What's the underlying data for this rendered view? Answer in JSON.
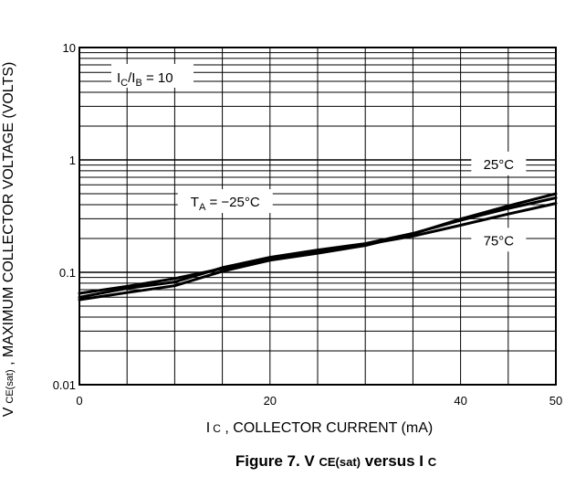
{
  "chart_data": {
    "type": "line",
    "title": "",
    "xlabel": "I C , COLLECTOR CURRENT (mA)",
    "xlabel_parts": {
      "main": "I",
      "sub": "C",
      "rest": " , COLLECTOR CURRENT (mA)"
    },
    "ylabel": "V CE(sat) , MAXIMUM COLLECTOR VOLTAGE (VOLTS)",
    "ylabel_parts": {
      "main": "V",
      "sub": "CE(sat)",
      "rest": " , MAXIMUM COLLECTOR VOLTAGE (VOLTS)"
    },
    "caption": "Figure 7. V CE(sat) versus I C",
    "caption_parts": {
      "prefix": "Figure 7. V ",
      "sub1": "CE(sat)",
      "mid": " versus I ",
      "sub2": "C"
    },
    "x_scale": "linear",
    "y_scale": "log",
    "xlim": [
      0,
      50
    ],
    "ylim": [
      0.01,
      10
    ],
    "x_ticks": [
      0,
      20,
      40,
      50
    ],
    "x_tick_labels": [
      "0",
      "20",
      "40",
      "50"
    ],
    "y_ticks": [
      0.01,
      0.1,
      1,
      10
    ],
    "y_tick_labels": [
      "0.01",
      "0.1",
      "1",
      "10"
    ],
    "grid": true,
    "x_grid": [
      0,
      5,
      10,
      15,
      20,
      25,
      30,
      35,
      40,
      45,
      50
    ],
    "condition": {
      "main": "I",
      "sub1": "C",
      "slash": "/I",
      "sub2": "B",
      "rest": " = 10"
    },
    "series": [
      {
        "name": "TA = -25°C",
        "label_parts": {
          "main": "T",
          "sub": "A",
          "rest": " = −25°C"
        },
        "x": [
          0,
          5,
          10,
          15,
          20,
          25,
          30,
          35,
          40,
          45,
          50
        ],
        "values": [
          0.065,
          0.075,
          0.088,
          0.108,
          0.13,
          0.152,
          0.177,
          0.21,
          0.262,
          0.33,
          0.41
        ]
      },
      {
        "name": "25°C",
        "label_parts": {
          "main": "25°C"
        },
        "x": [
          0,
          5,
          10,
          15,
          20,
          25,
          30,
          35,
          40,
          45,
          50
        ],
        "values": [
          0.06,
          0.072,
          0.082,
          0.11,
          0.136,
          0.158,
          0.18,
          0.222,
          0.29,
          0.37,
          0.46
        ]
      },
      {
        "name": "75°C",
        "label_parts": {
          "main": "75°C"
        },
        "x": [
          0,
          5,
          10,
          15,
          20,
          25,
          30,
          35,
          40,
          45,
          50
        ],
        "values": [
          0.057,
          0.066,
          0.076,
          0.102,
          0.128,
          0.148,
          0.173,
          0.22,
          0.298,
          0.39,
          0.5
        ]
      }
    ]
  }
}
